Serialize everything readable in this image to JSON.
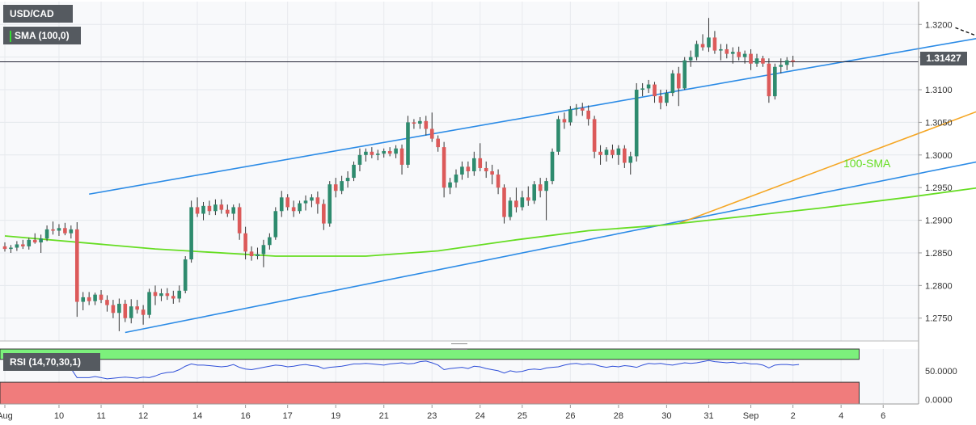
{
  "chart_data": {
    "type": "candlestick",
    "symbol": "USD/CAD",
    "indicator_label": "SMA (100,0)",
    "sma_label": "100-SMA",
    "last_price": "1.31427",
    "last_price_value": 1.31427,
    "ylim": [
      1.2715,
      1.3235
    ],
    "y_ticks": [
      "1.3200",
      "1.3150",
      "1.3100",
      "1.3050",
      "1.3000",
      "1.2950",
      "1.2900",
      "1.2850",
      "1.2800",
      "1.2750"
    ],
    "y_tick_values": [
      1.32,
      1.315,
      1.31,
      1.305,
      1.3,
      1.295,
      1.29,
      1.285,
      1.28,
      1.275
    ],
    "x_ticks": [
      "Aug",
      "10",
      "11",
      "12",
      "14",
      "16",
      "17",
      "19",
      "21",
      "23",
      "24",
      "25",
      "26",
      "28",
      "30",
      "31",
      "Sep",
      "2",
      "4",
      "6"
    ],
    "x_tick_index": [
      0,
      9,
      16,
      23,
      32,
      40,
      47,
      55,
      63,
      71,
      79,
      86,
      94,
      102,
      110,
      117,
      124,
      131,
      139,
      146
    ],
    "candles": [
      [
        1.286,
        1.2866,
        1.2852,
        1.2856
      ],
      [
        1.2856,
        1.2862,
        1.285,
        1.2858
      ],
      [
        1.2858,
        1.2868,
        1.2853,
        1.2863
      ],
      [
        1.2863,
        1.287,
        1.2856,
        1.286
      ],
      [
        1.286,
        1.2873,
        1.2855,
        1.287
      ],
      [
        1.287,
        1.288,
        1.2864,
        1.2866
      ],
      [
        1.2866,
        1.2878,
        1.285,
        1.2872
      ],
      [
        1.2872,
        1.2892,
        1.2868,
        1.2886
      ],
      [
        1.2886,
        1.2898,
        1.2878,
        1.2884
      ],
      [
        1.2884,
        1.2894,
        1.2876,
        1.2888
      ],
      [
        1.2888,
        1.2896,
        1.2877,
        1.288
      ],
      [
        1.288,
        1.2892,
        1.2872,
        1.2886
      ],
      [
        1.2886,
        1.2897,
        1.2752,
        1.2775
      ],
      [
        1.2775,
        1.279,
        1.2762,
        1.2782
      ],
      [
        1.2782,
        1.279,
        1.277,
        1.2776
      ],
      [
        1.2776,
        1.2789,
        1.277,
        1.2786
      ],
      [
        1.2786,
        1.2793,
        1.2773,
        1.2778
      ],
      [
        1.2778,
        1.2785,
        1.276,
        1.277
      ],
      [
        1.277,
        1.2778,
        1.275,
        1.2758
      ],
      [
        1.2758,
        1.278,
        1.273,
        1.2772
      ],
      [
        1.2772,
        1.2778,
        1.2744,
        1.275
      ],
      [
        1.275,
        1.2779,
        1.2742,
        1.2768
      ],
      [
        1.2768,
        1.2778,
        1.2757,
        1.2763
      ],
      [
        1.2763,
        1.277,
        1.274,
        1.2755
      ],
      [
        1.2755,
        1.2795,
        1.275,
        1.279
      ],
      [
        1.279,
        1.28,
        1.277,
        1.2784
      ],
      [
        1.2784,
        1.2795,
        1.2776,
        1.2788
      ],
      [
        1.2788,
        1.2796,
        1.2778,
        1.2784
      ],
      [
        1.2784,
        1.2792,
        1.2772,
        1.278
      ],
      [
        1.278,
        1.28,
        1.2774,
        1.2792
      ],
      [
        1.2792,
        1.2845,
        1.2788,
        1.284
      ],
      [
        1.284,
        1.293,
        1.2835,
        1.292
      ],
      [
        1.292,
        1.2935,
        1.2905,
        1.291
      ],
      [
        1.291,
        1.2928,
        1.29,
        1.2922
      ],
      [
        1.2922,
        1.293,
        1.2908,
        1.2914
      ],
      [
        1.2914,
        1.2932,
        1.2908,
        1.2924
      ],
      [
        1.2924,
        1.2932,
        1.291,
        1.2916
      ],
      [
        1.2916,
        1.2924,
        1.2905,
        1.291
      ],
      [
        1.291,
        1.2924,
        1.29,
        1.292
      ],
      [
        1.292,
        1.2926,
        1.287,
        1.288
      ],
      [
        1.288,
        1.289,
        1.284,
        1.2852
      ],
      [
        1.2852,
        1.286,
        1.2838,
        1.2845
      ],
      [
        1.2845,
        1.2858,
        1.284,
        1.2848
      ],
      [
        1.2848,
        1.287,
        1.2828,
        1.2862
      ],
      [
        1.2862,
        1.288,
        1.2855,
        1.2874
      ],
      [
        1.2874,
        1.292,
        1.287,
        1.2914
      ],
      [
        1.2914,
        1.2945,
        1.2905,
        1.2935
      ],
      [
        1.2935,
        1.294,
        1.2915,
        1.292
      ],
      [
        1.292,
        1.293,
        1.2905,
        1.2914
      ],
      [
        1.2914,
        1.293,
        1.291,
        1.2926
      ],
      [
        1.2926,
        1.2938,
        1.2915,
        1.293
      ],
      [
        1.293,
        1.294,
        1.292,
        1.2935
      ],
      [
        1.2935,
        1.2944,
        1.291,
        1.2925
      ],
      [
        1.2925,
        1.2932,
        1.2885,
        1.2895
      ],
      [
        1.2895,
        1.296,
        1.289,
        1.2955
      ],
      [
        1.2955,
        1.2965,
        1.2935,
        1.2945
      ],
      [
        1.2945,
        1.2968,
        1.294,
        1.296
      ],
      [
        1.296,
        1.2975,
        1.295,
        1.2965
      ],
      [
        1.2965,
        1.299,
        1.296,
        1.2985
      ],
      [
        1.2985,
        1.301,
        1.2975,
        1.3
      ],
      [
        1.3,
        1.301,
        1.299,
        1.3005
      ],
      [
        1.3005,
        1.3012,
        1.2995,
        1.3
      ],
      [
        1.3,
        1.3008,
        1.2992,
        1.3002
      ],
      [
        1.3002,
        1.301,
        1.2996,
        1.3006
      ],
      [
        1.3006,
        1.3012,
        1.2998,
        1.3002
      ],
      [
        1.3002,
        1.3015,
        1.2995,
        1.301
      ],
      [
        1.301,
        1.3016,
        1.297,
        1.2985
      ],
      [
        1.2985,
        1.306,
        1.298,
        1.305
      ],
      [
        1.305,
        1.3055,
        1.304,
        1.3048
      ],
      [
        1.3048,
        1.3058,
        1.304,
        1.3052
      ],
      [
        1.3052,
        1.306,
        1.303,
        1.304
      ],
      [
        1.304,
        1.3065,
        1.302,
        1.3025
      ],
      [
        1.3025,
        1.303,
        1.3005,
        1.3012
      ],
      [
        1.3012,
        1.302,
        1.2935,
        1.295
      ],
      [
        1.295,
        1.2965,
        1.294,
        1.2958
      ],
      [
        1.2958,
        1.2978,
        1.295,
        1.297
      ],
      [
        1.297,
        1.299,
        1.2962,
        1.2982
      ],
      [
        1.2982,
        1.299,
        1.2965,
        1.2975
      ],
      [
        1.2975,
        1.3005,
        1.2968,
        1.2995
      ],
      [
        1.2995,
        1.3018,
        1.2975,
        1.298
      ],
      [
        1.298,
        1.299,
        1.2965,
        1.2975
      ],
      [
        1.2975,
        1.2985,
        1.2955,
        1.297
      ],
      [
        1.297,
        1.2978,
        1.294,
        1.295
      ],
      [
        1.295,
        1.2955,
        1.2895,
        1.2905
      ],
      [
        1.2905,
        1.2935,
        1.29,
        1.293
      ],
      [
        1.293,
        1.295,
        1.2912,
        1.292
      ],
      [
        1.292,
        1.2945,
        1.2915,
        1.2935
      ],
      [
        1.2935,
        1.2952,
        1.2922,
        1.293
      ],
      [
        1.293,
        1.296,
        1.2925,
        1.2955
      ],
      [
        1.2955,
        1.2965,
        1.2935,
        1.2945
      ],
      [
        1.2945,
        1.2965,
        1.29,
        1.296
      ],
      [
        1.296,
        1.301,
        1.2955,
        1.3005
      ],
      [
        1.3005,
        1.306,
        1.3,
        1.3055
      ],
      [
        1.3055,
        1.3065,
        1.304,
        1.305
      ],
      [
        1.305,
        1.3075,
        1.3045,
        1.307
      ],
      [
        1.307,
        1.3078,
        1.306,
        1.3072
      ],
      [
        1.3072,
        1.308,
        1.306,
        1.3068
      ],
      [
        1.3068,
        1.3076,
        1.3045,
        1.3055
      ],
      [
        1.3055,
        1.306,
        1.2995,
        1.3005
      ],
      [
        1.3005,
        1.3015,
        1.2985,
        1.3
      ],
      [
        1.3,
        1.3012,
        1.299,
        1.3008
      ],
      [
        1.3008,
        1.3016,
        1.2995,
        1.3
      ],
      [
        1.3,
        1.3015,
        1.2985,
        1.301
      ],
      [
        1.301,
        1.3015,
        1.298,
        1.2988
      ],
      [
        1.2988,
        1.3005,
        1.297,
        1.2998
      ],
      [
        1.2998,
        1.311,
        1.299,
        1.31
      ],
      [
        1.31,
        1.311,
        1.309,
        1.3102
      ],
      [
        1.3102,
        1.3115,
        1.3095,
        1.3108
      ],
      [
        1.3108,
        1.3112,
        1.308,
        1.309
      ],
      [
        1.309,
        1.31,
        1.307,
        1.308
      ],
      [
        1.308,
        1.31,
        1.3075,
        1.3095
      ],
      [
        1.3095,
        1.313,
        1.309,
        1.3125
      ],
      [
        1.3125,
        1.3135,
        1.3075,
        1.3102
      ],
      [
        1.3102,
        1.315,
        1.31,
        1.3145
      ],
      [
        1.3145,
        1.316,
        1.3135,
        1.315
      ],
      [
        1.315,
        1.3175,
        1.3145,
        1.317
      ],
      [
        1.317,
        1.3185,
        1.316,
        1.3165
      ],
      [
        1.3165,
        1.321,
        1.3158,
        1.318
      ],
      [
        1.318,
        1.319,
        1.3155,
        1.316
      ],
      [
        1.316,
        1.317,
        1.3145,
        1.3162
      ],
      [
        1.3162,
        1.317,
        1.3148,
        1.3155
      ],
      [
        1.3155,
        1.3165,
        1.314,
        1.3158
      ],
      [
        1.3158,
        1.3166,
        1.3145,
        1.315
      ],
      [
        1.315,
        1.316,
        1.314,
        1.3155
      ],
      [
        1.3155,
        1.3162,
        1.313,
        1.314
      ],
      [
        1.314,
        1.3155,
        1.3135,
        1.3148
      ],
      [
        1.3148,
        1.3152,
        1.3135,
        1.314
      ],
      [
        1.314,
        1.3148,
        1.308,
        1.309
      ],
      [
        1.309,
        1.314,
        1.3085,
        1.3135
      ],
      [
        1.3135,
        1.3148,
        1.3125,
        1.3138
      ],
      [
        1.3138,
        1.315,
        1.313,
        1.3145
      ],
      [
        1.3145,
        1.3152,
        1.3135,
        1.3143
      ]
    ],
    "sma": [
      [
        0,
        1.2876
      ],
      [
        25,
        1.2856
      ],
      [
        45,
        1.2845
      ],
      [
        60,
        1.2845
      ],
      [
        72,
        1.2853
      ],
      [
        85,
        1.287
      ],
      [
        97,
        1.2884
      ],
      [
        110,
        1.2893
      ],
      [
        122,
        1.2905
      ],
      [
        135,
        1.2918
      ],
      [
        150,
        1.2935
      ],
      [
        162,
        1.295
      ],
      [
        172,
        1.297
      ],
      [
        180,
        1.2985
      ]
    ],
    "channel_upper": [
      [
        14,
        1.294
      ],
      [
        181,
        1.321
      ]
    ],
    "channel_lower": [
      [
        20,
        1.2728
      ],
      [
        177,
        1.3018
      ]
    ],
    "support_line": [
      [
        112,
        1.2895
      ],
      [
        177,
        1.312
      ]
    ],
    "resistance_line": [
      [
        158,
        1.3195
      ],
      [
        177,
        1.3128
      ]
    ],
    "rsi": {
      "label": "RSI (14,70,30,1)",
      "ylim": [
        -8,
        88
      ],
      "overbought": 70,
      "oversold": 30,
      "y_ticks": [
        "50.0000",
        "0.0000"
      ],
      "y_tick_values": [
        50,
        0
      ],
      "values": [
        55,
        53,
        51,
        57,
        60,
        56,
        58,
        62,
        57,
        55,
        58,
        54,
        38,
        38,
        38,
        40,
        38,
        36,
        37,
        38,
        39,
        38,
        37,
        39,
        38,
        41,
        45,
        47,
        48,
        52,
        58,
        62,
        60,
        60,
        59,
        58,
        57,
        58,
        61,
        56,
        53,
        52,
        54,
        56,
        58,
        60,
        59,
        57,
        58,
        60,
        61,
        59,
        58,
        54,
        56,
        57,
        58,
        60,
        62,
        62,
        63,
        62,
        61,
        60,
        62,
        63,
        64,
        62,
        63,
        66,
        67,
        64,
        60,
        52,
        54,
        55,
        56,
        54,
        58,
        57,
        54,
        52,
        50,
        46,
        50,
        48,
        49,
        52,
        53,
        52,
        55,
        56,
        57,
        60,
        62,
        63,
        61,
        62,
        61,
        58,
        56,
        58,
        57,
        59,
        58,
        56,
        60,
        63,
        62,
        63,
        61,
        60,
        62,
        64,
        63,
        64,
        66,
        68,
        66,
        65,
        64,
        65,
        63,
        64,
        62,
        62,
        60,
        55,
        60,
        61,
        61,
        60,
        61
      ]
    }
  }
}
